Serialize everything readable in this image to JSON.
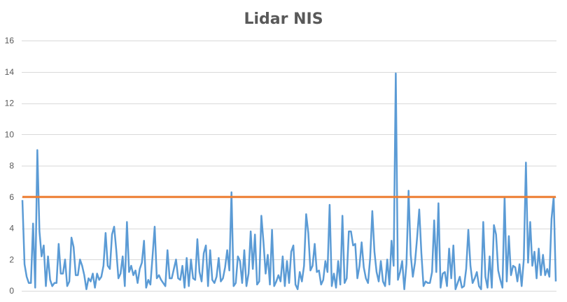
{
  "chart_data": {
    "type": "line",
    "title": "Lidar NIS",
    "xlabel": "",
    "ylabel": "",
    "ylim": [
      0,
      16
    ],
    "yticks": [
      0,
      2,
      4,
      6,
      8,
      10,
      12,
      14,
      16
    ],
    "grid": true,
    "legend": "none",
    "series": [
      {
        "color": "#5b9bd5",
        "values": [
          5.8,
          1.7,
          0.9,
          0.5,
          0.5,
          4.3,
          0.2,
          9.0,
          3.8,
          2.2,
          2.9,
          0.3,
          2.2,
          0.7,
          0.3,
          0.5,
          0.5,
          3.0,
          1.1,
          1.1,
          2.0,
          0.3,
          0.6,
          3.4,
          2.8,
          1.0,
          1.0,
          2.0,
          1.6,
          1.0,
          0.1,
          0.8,
          0.6,
          1.1,
          0.2,
          1.1,
          0.7,
          0.9,
          1.6,
          3.7,
          1.6,
          1.4,
          3.6,
          4.1,
          2.6,
          0.8,
          1.1,
          2.2,
          0.3,
          4.4,
          1.2,
          1.6,
          1.0,
          1.3,
          0.5,
          1.4,
          1.8,
          3.2,
          0.2,
          0.7,
          0.4,
          2.2,
          4.1,
          0.8,
          1.0,
          0.7,
          0.5,
          0.3,
          2.6,
          0.8,
          0.8,
          1.4,
          2.0,
          0.8,
          0.7,
          1.6,
          0.2,
          2.1,
          0.3,
          2.0,
          0.8,
          0.7,
          3.3,
          1.2,
          0.6,
          2.4,
          2.9,
          0.3,
          2.6,
          0.7,
          0.5,
          0.9,
          2.1,
          0.6,
          0.8,
          1.5,
          2.6,
          1.3,
          6.3,
          0.3,
          0.5,
          2.2,
          1.9,
          0.5,
          2.6,
          0.3,
          1.1,
          3.8,
          1.4,
          3.6,
          0.4,
          0.6,
          4.8,
          3.1,
          1.1,
          2.3,
          0.4,
          3.9,
          0.3,
          0.6,
          1.0,
          0.6,
          2.2,
          0.3,
          1.9,
          0.5,
          2.5,
          2.9,
          0.4,
          0.1,
          1.2,
          0.6,
          1.6,
          4.9,
          3.7,
          1.3,
          1.6,
          3.0,
          1.2,
          1.3,
          0.4,
          0.7,
          1.9,
          1.2,
          5.5,
          0.3,
          1.1,
          0.2,
          1.9,
          0.4,
          4.8,
          0.5,
          0.8,
          3.8,
          3.8,
          2.9,
          3.0,
          0.8,
          1.6,
          3.1,
          1.5,
          0.8,
          0.5,
          2.1,
          5.1,
          2.5,
          1.2,
          0.6,
          1.9,
          0.6,
          0.3,
          2.0,
          0.4,
          3.2,
          1.6,
          13.9,
          0.7,
          1.2,
          1.9,
          0.1,
          1.7,
          6.4,
          2.3,
          0.9,
          1.8,
          3.4,
          5.2,
          2.4,
          0.3,
          0.6,
          0.5,
          0.5,
          1.2,
          4.5,
          1.2,
          5.6,
          0.2,
          1.1,
          1.2,
          0.3,
          2.7,
          0.8,
          2.9,
          0.1,
          0.5,
          0.9,
          0.2,
          0.3,
          1.4,
          3.9,
          1.6,
          0.5,
          0.8,
          1.2,
          0.3,
          0.1,
          4.4,
          0.9,
          0.2,
          2.2,
          0.2,
          4.2,
          3.6,
          1.3,
          0.7,
          0.2,
          6.0,
          0.6,
          3.5,
          1.0,
          1.6,
          1.5,
          0.6,
          1.7,
          0.3,
          2.0,
          8.2,
          1.8,
          4.4,
          1.6,
          2.5,
          0.8,
          2.7,
          1.0,
          2.3,
          1.0,
          1.4,
          0.9,
          4.6,
          6.0,
          0.6
        ]
      },
      {
        "color": "#ed7d31",
        "values": [
          6,
          6
        ]
      }
    ]
  }
}
